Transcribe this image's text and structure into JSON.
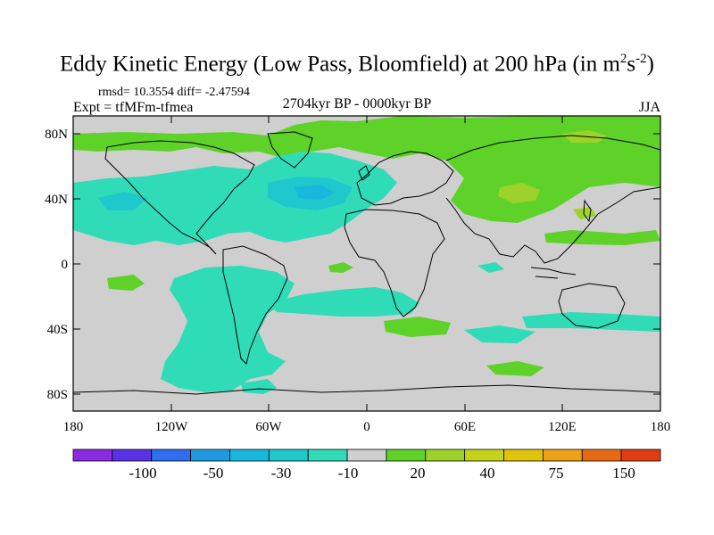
{
  "title": {
    "main": "Eddy Kinetic Energy (Low Pass, Bloomfield) at 200 hPa (in m",
    "sup1": "2",
    "mid": "s",
    "sup2": "-2",
    "end": ")"
  },
  "stats": "rmsd= 10.3554 diff= -2.47594",
  "expt": "Expt = tfMFm-tfmea",
  "period": "2704kyr BP - 0000kyr BP",
  "season": "JJA",
  "map": {
    "lat_ticks": [
      "80N",
      "40N",
      "0",
      "40S",
      "80S"
    ],
    "lon_ticks": [
      "180",
      "120W",
      "60W",
      "0",
      "60E",
      "120E",
      "180"
    ]
  },
  "colorbar": {
    "colors": [
      "#8a2be2",
      "#5a32e6",
      "#2f6ef0",
      "#1f9ae0",
      "#18b8de",
      "#1ec8cc",
      "#30dcb8",
      "#cfcfcf",
      "#5fd22a",
      "#9cd22a",
      "#c4d21c",
      "#e0c40a",
      "#eea016",
      "#e66a14",
      "#e23c12"
    ],
    "labels": [
      "-100",
      "-50",
      "-30",
      "-10",
      "20",
      "40",
      "75",
      "150"
    ]
  }
}
